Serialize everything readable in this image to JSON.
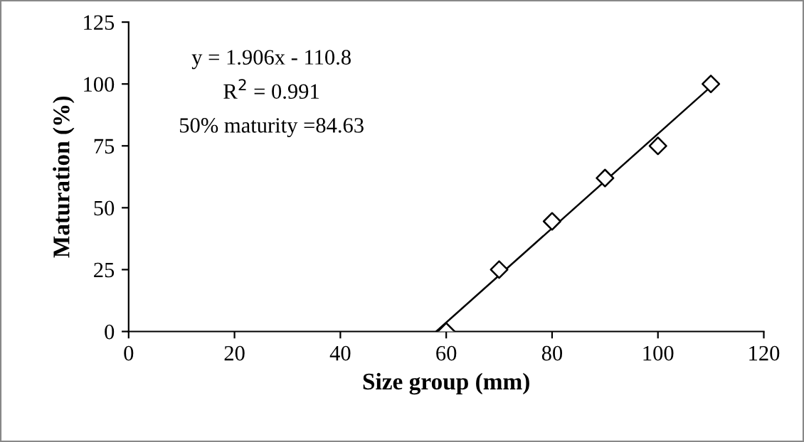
{
  "chart_data": {
    "type": "scatter",
    "xlabel": "Size group (mm)",
    "ylabel": "Maturation (%)",
    "xlim": [
      0,
      120
    ],
    "xticks": [
      0,
      20,
      40,
      60,
      80,
      100,
      120
    ],
    "ylim": [
      0,
      125
    ],
    "yticks": [
      0,
      25,
      50,
      75,
      100,
      125
    ],
    "grid": false,
    "legend": false,
    "series": [
      {
        "color": "#000000",
        "marker": "diamond",
        "x": [
          60,
          70,
          80,
          90,
          100,
          110
        ],
        "values": [
          0,
          25,
          44.5,
          62,
          75,
          100
        ]
      },
      {
        "type": "line",
        "color": "#000000",
        "x": [
          58.1,
          110
        ],
        "values": [
          0,
          98.9
        ],
        "line_style": "solid",
        "marker": "none"
      }
    ],
    "annotations": [
      "y = 1.906x - 110.8",
      "R$^{2}$ = 0.991",
      "50% maturity =84.63"
    ]
  }
}
